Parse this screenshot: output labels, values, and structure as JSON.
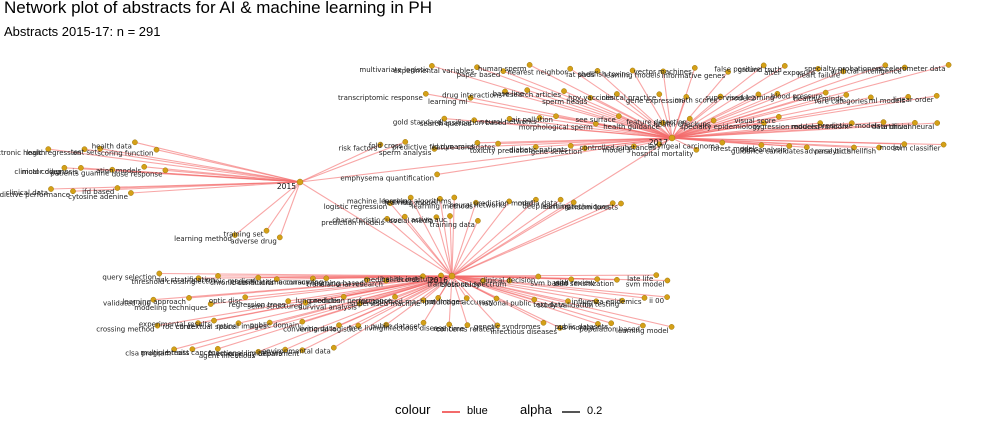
{
  "title": "Network plot of abstracts for AI & machine learning in PH",
  "subtitle": "Abstracts 2015-17: n =  291",
  "colors": {
    "edge": "#f36b6b",
    "node": "#d4a017",
    "node_stroke": "#a07810",
    "text": "#222222",
    "alpha_key": "#555555"
  },
  "legend": {
    "colour_title": "colour",
    "colour_value": "blue",
    "alpha_title": "alpha",
    "alpha_value": "0.2"
  },
  "hubs": [
    "2015",
    "2016",
    "2017"
  ],
  "terms": {
    "2015": [
      "electronic health",
      "logic regression",
      "test set",
      "health data",
      "scoring function",
      "clinical codes",
      "motor diagnosis",
      "patients guanine",
      "ation models",
      "dose response",
      "clinical data",
      "predictive performance",
      "ifd based",
      "cytosine adenine",
      "risk factors",
      "fold cross",
      "learning method",
      "training set",
      "adverse drug"
    ],
    "2016": [
      "query selection",
      "threshold crossing",
      "risk stratification",
      "electronic medical",
      "chronic conditions",
      "classification accuracy",
      "time consuming",
      "learning based",
      "translational research",
      "medical records",
      "health institutes",
      "cross study",
      "translational spectrum",
      "clinical decision",
      "svm based",
      "with review",
      "skin sensitization",
      "late life",
      "svm model",
      "validated auc",
      "learning approach",
      "modeling techniques",
      "optic disc",
      "regression trees",
      "semi structured",
      "lung nodules",
      "survival analysis",
      "prediction performance",
      "supervised machine",
      "unsupervised machine",
      "ct images",
      "prediction accuracy",
      "national public",
      "text data",
      "study validation",
      "hiv testing",
      "influenza epidemics",
      "ii 00",
      "crossing method",
      "roc curve",
      "experimental results",
      "contextual space",
      "retinal images",
      "public domain",
      "living data",
      "conventional logistic",
      "free living",
      "public dataset",
      "infectious disease",
      "real time",
      "concerns related",
      "genetic syndromes",
      "infectious diseases",
      "48 months",
      "public datasets",
      "population based",
      "learning model",
      "clsa program",
      "multiple traits",
      "breast cancer",
      "agent infectious",
      "functional limitations",
      "emergency department",
      "environmental data",
      "logistic regression",
      "machine learning",
      "learning model",
      "learning algorithms",
      "learning methods",
      "neural networks",
      "prediction model",
      "media data",
      "deep learning",
      "learning techniques",
      "random forests",
      "prediction models",
      "characteristic curve",
      "social media",
      "active auc",
      "training data"
    ],
    "2017": [
      "multivariate logistic",
      "experimental variables",
      "paper based",
      "human sperm",
      "nearest neighbor",
      "fat pads",
      "shellfish toxins",
      "learning models",
      "vector machines",
      "informative genes",
      "false positive",
      "ground truth",
      "after exposure",
      "heart failure",
      "specialty probationers",
      "artificial intelligence",
      "accelerometer data",
      "transcriptomic response",
      "learning ml",
      "drug interactions",
      "base line",
      "research articles",
      "sperm heads",
      "hpv vaccines",
      "clinical practice",
      "gene expression",
      "math scores",
      "model 2",
      "supervised learning",
      "blood pressure",
      "healthy minds",
      "rare categories",
      "ml models",
      "linear order",
      "gold standard",
      "search queries",
      "classification based",
      "neural networks",
      "air pollution",
      "morphological sperm",
      "see surface",
      "health guidance",
      "feature detection",
      "health checkups",
      "specialty epidemiology",
      "visual score",
      "regression models",
      "reduced random",
      "predictive models",
      "data driven",
      "artificial neural",
      "sperm analysis",
      "ld dynamics",
      "predictive feature candidates",
      "toxicity prediction",
      "diabetic patients",
      "gene selection",
      "model 3",
      "controlled substances",
      "hospital mortality",
      "laryngeal carcinoma",
      "forest models",
      "data analysis",
      "guidance candidates",
      "adverse birth",
      "paralytic shellfish",
      "model",
      "svm classifier",
      "emphysema quantification"
    ]
  }
}
